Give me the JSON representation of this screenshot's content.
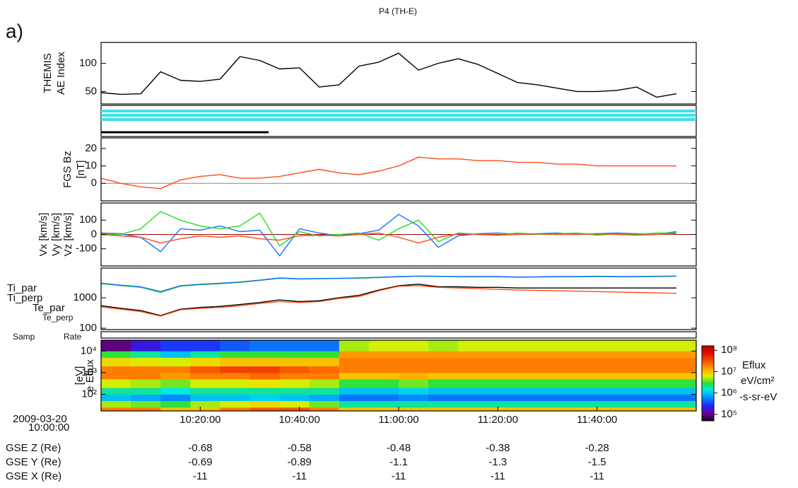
{
  "title": "P4 (TH-E)",
  "panel_label": "a)",
  "time_label": {
    "date": "2009-03-20",
    "time": "10:00:00"
  },
  "samp_rate_labels": [
    "Samp",
    "Rate"
  ],
  "chart_data": [
    {
      "type": "line",
      "ylabel": [
        "THEMIS",
        "AE Index"
      ],
      "xlim": [
        "10:00:00",
        "12:00:00"
      ],
      "ylim": [
        28,
        137
      ],
      "yticks": [
        50,
        100
      ],
      "x": [
        "10:00:00",
        "10:04:00",
        "10:08:00",
        "10:12:00",
        "10:16:00",
        "10:20:00",
        "10:24:00",
        "10:28:00",
        "10:32:00",
        "10:36:00",
        "10:40:00",
        "10:44:00",
        "10:48:00",
        "10:52:00",
        "10:56:00",
        "11:00:00",
        "11:04:00",
        "11:08:00",
        "11:12:00",
        "11:16:00",
        "11:20:00",
        "11:24:00",
        "11:28:00",
        "11:32:00",
        "11:36:00",
        "11:40:00",
        "11:44:00",
        "11:48:00",
        "11:52:00",
        "11:56:00"
      ],
      "series": [
        {
          "color": "#000000",
          "values": [
            48,
            45,
            46,
            85,
            70,
            68,
            72,
            112,
            105,
            90,
            92,
            58,
            62,
            95,
            102,
            118,
            88,
            100,
            108,
            98,
            82,
            66,
            62,
            56,
            50,
            50,
            52,
            58,
            40,
            46
          ]
        }
      ]
    },
    {
      "type": "line",
      "ylabel": "[nT]",
      "xlim": [
        "10:00:00",
        "12:00:00"
      ],
      "ylim": [
        -10,
        26
      ],
      "yticks": [
        0,
        10,
        20
      ],
      "zero_line": true,
      "zero_line_color": "#888888",
      "x": [
        "10:00:00",
        "10:04:00",
        "10:08:00",
        "10:12:00",
        "10:16:00",
        "10:20:00",
        "10:24:00",
        "10:28:00",
        "10:32:00",
        "10:36:00",
        "10:40:00",
        "10:44:00",
        "10:48:00",
        "10:52:00",
        "10:56:00",
        "11:00:00",
        "11:04:00",
        "11:08:00",
        "11:12:00",
        "11:16:00",
        "11:20:00",
        "11:24:00",
        "11:28:00",
        "11:32:00",
        "11:36:00",
        "11:40:00",
        "11:44:00",
        "11:48:00",
        "11:52:00",
        "11:56:00"
      ],
      "series": [
        {
          "name": "FGS Bz",
          "color": "#ff4b1a",
          "values": [
            3,
            0,
            -2,
            -3,
            2,
            4,
            5,
            3,
            3,
            4,
            6,
            8,
            6,
            5,
            7,
            10,
            15,
            14,
            14,
            13,
            13,
            12,
            12,
            11,
            11,
            10,
            10,
            10,
            10,
            10
          ]
        }
      ]
    },
    {
      "type": "line",
      "xlim": [
        "10:00:00",
        "12:00:00"
      ],
      "ylim": [
        -220,
        220
      ],
      "yticks": [
        -100,
        0,
        100
      ],
      "zero_line": true,
      "zero_line_color": "#a00000",
      "x": [
        "10:00:00",
        "10:04:00",
        "10:08:00",
        "10:12:00",
        "10:16:00",
        "10:20:00",
        "10:24:00",
        "10:28:00",
        "10:32:00",
        "10:36:00",
        "10:40:00",
        "10:44:00",
        "10:48:00",
        "10:52:00",
        "10:56:00",
        "11:00:00",
        "11:04:00",
        "11:08:00",
        "11:12:00",
        "11:16:00",
        "11:20:00",
        "11:24:00",
        "11:28:00",
        "11:32:00",
        "11:36:00",
        "11:40:00",
        "11:44:00",
        "11:48:00",
        "11:52:00",
        "11:56:00"
      ],
      "series": [
        {
          "name": "Vx [km/s]",
          "color": "#1e6fff",
          "values": [
            10,
            5,
            -20,
            -120,
            40,
            30,
            60,
            20,
            30,
            -150,
            40,
            10,
            -10,
            5,
            30,
            140,
            60,
            -90,
            -10,
            5,
            10,
            0,
            5,
            10,
            0,
            5,
            10,
            5,
            0,
            20
          ]
        },
        {
          "name": "Vy [km/s]",
          "color": "#22dd22",
          "values": [
            5,
            0,
            40,
            160,
            100,
            60,
            40,
            60,
            150,
            -80,
            20,
            -10,
            0,
            10,
            -40,
            40,
            100,
            -50,
            10,
            0,
            -5,
            10,
            0,
            5,
            10,
            -5,
            5,
            0,
            10,
            10
          ]
        },
        {
          "name": "Vz [km/s]",
          "color": "#ff4b1a",
          "values": [
            0,
            -10,
            -20,
            -60,
            -30,
            -10,
            -20,
            -10,
            -30,
            -40,
            -10,
            -5,
            -10,
            0,
            10,
            -20,
            -60,
            -20,
            5,
            0,
            -5,
            0,
            5,
            0,
            0,
            5,
            0,
            -5,
            0,
            5
          ]
        }
      ]
    },
    {
      "type": "line",
      "log_scale": true,
      "xlim": [
        "10:00:00",
        "12:00:00"
      ],
      "ylim": [
        90,
        9500
      ],
      "yticks": [
        100,
        1000
      ],
      "x": [
        "10:00:00",
        "10:04:00",
        "10:08:00",
        "10:12:00",
        "10:16:00",
        "10:20:00",
        "10:24:00",
        "10:28:00",
        "10:32:00",
        "10:36:00",
        "10:40:00",
        "10:44:00",
        "10:48:00",
        "10:52:00",
        "10:56:00",
        "11:00:00",
        "11:04:00",
        "11:08:00",
        "11:12:00",
        "11:16:00",
        "11:20:00",
        "11:24:00",
        "11:28:00",
        "11:32:00",
        "11:36:00",
        "11:40:00",
        "11:44:00",
        "11:48:00",
        "11:52:00",
        "11:56:00"
      ],
      "series": [
        {
          "name": "Ti_par",
          "color": "#22dd22",
          "values": [
            2900,
            2500,
            2200,
            1500,
            2400,
            2700,
            2900,
            3200,
            3700,
            4400,
            4100,
            4200,
            4300,
            4400,
            4600,
            4900,
            5100,
            5000,
            4900,
            4900,
            4900,
            4700,
            4800,
            4900,
            4900,
            5000,
            4900,
            4900,
            5000,
            5100
          ]
        },
        {
          "name": "Ti_perp",
          "color": "#1e6fff",
          "values": [
            3000,
            2600,
            2300,
            1600,
            2500,
            2800,
            3000,
            3300,
            3800,
            4500,
            4200,
            4300,
            4400,
            4500,
            4700,
            5000,
            5200,
            5100,
            5000,
            5000,
            5000,
            4800,
            4900,
            5000,
            5000,
            5100,
            5000,
            5000,
            5100,
            5200
          ]
        },
        {
          "name": "Te_par",
          "color": "#000000",
          "values": [
            550,
            450,
            380,
            260,
            420,
            480,
            520,
            600,
            700,
            850,
            750,
            800,
            1000,
            1200,
            1800,
            2500,
            2800,
            2300,
            2300,
            2200,
            2200,
            2100,
            2100,
            2100,
            2100,
            2100,
            2100,
            2100,
            2100,
            2100
          ]
        },
        {
          "name": "Te_perp",
          "color": "#ff4b1a",
          "values": [
            500,
            420,
            350,
            250,
            400,
            450,
            480,
            550,
            650,
            750,
            700,
            750,
            950,
            1100,
            1700,
            2400,
            2500,
            2200,
            2100,
            2000,
            1900,
            1800,
            1750,
            1700,
            1650,
            1600,
            1550,
            1500,
            1450,
            1400
          ]
        }
      ]
    },
    {
      "type": "heatmap",
      "ylabel": [
        "[eV]",
        "e Eflux"
      ],
      "log_scale": true,
      "xlim": [
        "10:00:00",
        "12:00:00"
      ],
      "ylim": [
        17,
        31600
      ],
      "yticks": [
        {
          "value": 100,
          "label": "10²"
        },
        {
          "value": 1000,
          "label": "10³"
        },
        {
          "value": 10000,
          "label": "10⁴"
        }
      ],
      "xticks": [
        "10:20:00",
        "10:40:00",
        "11:00:00",
        "11:20:00",
        "11:40:00"
      ],
      "x_bins": [
        "10:00:00",
        "10:06:00",
        "10:12:00",
        "10:18:00",
        "10:24:00",
        "10:30:00",
        "10:36:00",
        "10:42:00",
        "10:48:00",
        "10:54:00",
        "11:00:00",
        "11:06:00",
        "11:12:00",
        "11:18:00",
        "11:24:00",
        "11:30:00",
        "11:36:00",
        "11:42:00",
        "11:48:00",
        "11:54:00",
        "12:00:00"
      ],
      "y_bins": [
        17,
        25,
        50,
        100,
        200,
        500,
        1000,
        2000,
        5000,
        10000,
        31600
      ],
      "z": [
        [
          20000000.0,
          20000000.0,
          10000000.0,
          10000000.0,
          20000000.0,
          30000000.0,
          30000000.0,
          20000000.0,
          10000000.0,
          10000000.0,
          10000000.0,
          10000000.0,
          10000000.0,
          10000000.0,
          10000000.0,
          10000000.0,
          10000000.0,
          10000000.0,
          10000000.0,
          10000000.0
        ],
        [
          5000000.0,
          4000000.0,
          3000000.0,
          5000000.0,
          6000000.0,
          8000000.0,
          6000000.0,
          4000000.0,
          2000000.0,
          2000000.0,
          2000000.0,
          2000000.0,
          2000000.0,
          2000000.0,
          2000000.0,
          2000000.0,
          2000000.0,
          2000000.0,
          2000000.0,
          2000000.0
        ],
        [
          1000000.0,
          800000.0,
          600000.0,
          1000000.0,
          1000000.0,
          1200000.0,
          1000000.0,
          800000.0,
          500000.0,
          500000.0,
          600000.0,
          500000.0,
          500000.0,
          500000.0,
          500000.0,
          500000.0,
          500000.0,
          500000.0,
          500000.0,
          500000.0
        ],
        [
          2000000.0,
          2000000.0,
          1500000.0,
          2000000.0,
          2000000.0,
          2000000.0,
          2000000.0,
          2000000.0,
          1000000.0,
          1000000.0,
          1200000.0,
          1000000.0,
          1000000.0,
          1000000.0,
          1000000.0,
          1000000.0,
          1000000.0,
          1000000.0,
          1000000.0,
          1000000.0
        ],
        [
          6000000.0,
          5000000.0,
          4000000.0,
          6000000.0,
          6000000.0,
          7000000.0,
          6000000.0,
          5000000.0,
          3000000.0,
          3000000.0,
          4000000.0,
          3000000.0,
          3000000.0,
          3000000.0,
          3000000.0,
          3000000.0,
          3000000.0,
          3000000.0,
          3000000.0,
          3000000.0
        ],
        [
          20000000.0,
          20000000.0,
          15000000.0,
          20000000.0,
          20000000.0,
          25000000.0,
          20000000.0,
          20000000.0,
          10000000.0,
          10000000.0,
          12000000.0,
          10000000.0,
          10000000.0,
          10000000.0,
          10000000.0,
          10000000.0,
          10000000.0,
          10000000.0,
          10000000.0,
          10000000.0
        ],
        [
          20000000.0,
          20000000.0,
          20000000.0,
          30000000.0,
          40000000.0,
          40000000.0,
          30000000.0,
          25000000.0,
          20000000.0,
          20000000.0,
          20000000.0,
          20000000.0,
          20000000.0,
          20000000.0,
          20000000.0,
          20000000.0,
          20000000.0,
          20000000.0,
          20000000.0,
          20000000.0
        ],
        [
          8000000.0,
          7000000.0,
          6000000.0,
          8000000.0,
          10000000.0,
          10000000.0,
          10000000.0,
          10000000.0,
          20000000.0,
          20000000.0,
          20000000.0,
          20000000.0,
          20000000.0,
          20000000.0,
          20000000.0,
          20000000.0,
          20000000.0,
          20000000.0,
          20000000.0,
          20000000.0
        ],
        [
          3000000.0,
          2000000.0,
          1000000.0,
          2000000.0,
          3000000.0,
          3000000.0,
          3000000.0,
          3000000.0,
          15000000.0,
          15000000.0,
          15000000.0,
          15000000.0,
          15000000.0,
          15000000.0,
          15000000.0,
          15000000.0,
          15000000.0,
          15000000.0,
          15000000.0,
          15000000.0
        ],
        [
          100000.0,
          200000.0,
          300000.0,
          300000.0,
          400000.0,
          500000.0,
          500000.0,
          500000.0,
          5000000.0,
          6000000.0,
          6000000.0,
          5000000.0,
          6000000.0,
          6000000.0,
          6000000.0,
          6000000.0,
          6000000.0,
          6000000.0,
          6000000.0,
          6000000.0
        ]
      ],
      "zlim": [
        50000,
        160000000
      ],
      "zticks": [
        {
          "value": 100000,
          "label": "10⁵"
        },
        {
          "value": 1000000,
          "label": "10⁶"
        },
        {
          "value": 10000000,
          "label": "10⁷"
        },
        {
          "value": 100000000,
          "label": "10⁸"
        }
      ],
      "zlabel": [
        "Eflux",
        "eV/cm²",
        "-s-sr-eV"
      ]
    }
  ],
  "ephemeris": {
    "rows": [
      {
        "label": "GSE Z (Re)",
        "values": [
          -0.68,
          -0.58,
          -0.48,
          -0.38,
          -0.28
        ]
      },
      {
        "label": "GSE Y (Re)",
        "values": [
          -0.69,
          -0.89,
          -1.1,
          -1.3,
          -1.5
        ]
      },
      {
        "label": "GSE X (Re)",
        "values": [
          -11,
          -11,
          -11,
          -11,
          -11
        ]
      }
    ]
  }
}
